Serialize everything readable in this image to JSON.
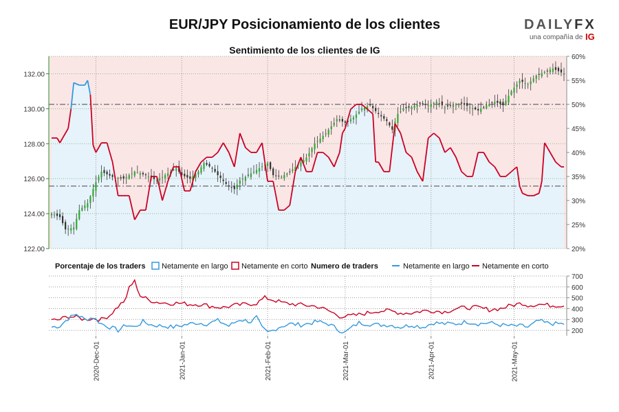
{
  "chart_data": {
    "type": "candlestick-sentiment",
    "title": "EUR/JPY Posicionamiento de los clientes",
    "subtitle": "Sentimiento de los clientes de IG",
    "brand": {
      "name_left": "DAILY",
      "name_right": "FX",
      "tagline": "una compañía de",
      "tagline_brand": "IG"
    },
    "price_axis": {
      "min": 122.0,
      "max": 133.0,
      "ticks": [
        "122.00",
        "124.00",
        "126.00",
        "128.00",
        "130.00",
        "132.00"
      ]
    },
    "pct_axis": {
      "min": 20,
      "max": 60,
      "ticks": [
        "20%",
        "25%",
        "30%",
        "35%",
        "40%",
        "45%",
        "50%",
        "55%",
        "60%"
      ]
    },
    "traders_axis": {
      "min": 150,
      "max": 700,
      "ticks": [
        "200",
        "300",
        "400",
        "500",
        "600",
        "700"
      ]
    },
    "x_ticks": [
      "2020-Dec-01",
      "2021-Jan-01",
      "2021-Feb-01",
      "2021-Mar-01",
      "2021-Apr-01",
      "2021-May-01"
    ],
    "x_tick_index": [
      16,
      47,
      78,
      106,
      137,
      167
    ],
    "num_points": 186,
    "reference_lines": {
      "pct_50": 50,
      "pct_33": 33
    },
    "legend": {
      "pct_title": "Porcentaje de los traders",
      "pct_long": "Netamente en largo",
      "pct_short": "Netamente en corto",
      "num_title": "Numero de traders",
      "num_long": "Netamente en largo",
      "num_short": "Netamente en corto"
    },
    "colors": {
      "long": "#3399dd",
      "short": "#cc0022",
      "long_bg": "#e6f3fb",
      "short_bg": "#fbe6e6",
      "up": "#33aa33",
      "down": "#333333",
      "axis_green": "#2a8a2a"
    },
    "price_anchors": [
      [
        0,
        124.0
      ],
      [
        3,
        123.8
      ],
      [
        5,
        123.1
      ],
      [
        8,
        123.2
      ],
      [
        10,
        124.2
      ],
      [
        13,
        124.6
      ],
      [
        16,
        125.8
      ],
      [
        18,
        126.4
      ],
      [
        22,
        126.1
      ],
      [
        26,
        126.0
      ],
      [
        30,
        126.4
      ],
      [
        34,
        126.2
      ],
      [
        38,
        125.9
      ],
      [
        42,
        126.3
      ],
      [
        45,
        126.6
      ],
      [
        47,
        126.2
      ],
      [
        50,
        126.0
      ],
      [
        53,
        126.4
      ],
      [
        55,
        126.9
      ],
      [
        58,
        126.6
      ],
      [
        60,
        126.2
      ],
      [
        63,
        125.7
      ],
      [
        66,
        125.4
      ],
      [
        68,
        125.9
      ],
      [
        70,
        126.1
      ],
      [
        72,
        126.3
      ],
      [
        75,
        126.6
      ],
      [
        78,
        126.9
      ],
      [
        80,
        126.2
      ],
      [
        83,
        126.1
      ],
      [
        86,
        126.4
      ],
      [
        89,
        126.8
      ],
      [
        92,
        127.2
      ],
      [
        95,
        128.0
      ],
      [
        97,
        128.3
      ],
      [
        99,
        128.6
      ],
      [
        101,
        129.0
      ],
      [
        103,
        129.4
      ],
      [
        106,
        129.2
      ],
      [
        109,
        129.5
      ],
      [
        112,
        130.0
      ],
      [
        115,
        130.2
      ],
      [
        118,
        129.7
      ],
      [
        121,
        129.3
      ],
      [
        123,
        128.8
      ],
      [
        125,
        129.7
      ],
      [
        127,
        130.0
      ],
      [
        130,
        130.1
      ],
      [
        133,
        130.3
      ],
      [
        136,
        130.2
      ],
      [
        139,
        130.4
      ],
      [
        142,
        130.1
      ],
      [
        145,
        130.2
      ],
      [
        148,
        130.3
      ],
      [
        151,
        130.1
      ],
      [
        154,
        129.9
      ],
      [
        157,
        130.2
      ],
      [
        160,
        130.4
      ],
      [
        163,
        130.2
      ],
      [
        166,
        131.0
      ],
      [
        169,
        131.6
      ],
      [
        172,
        131.4
      ],
      [
        175,
        131.9
      ],
      [
        178,
        132.1
      ],
      [
        181,
        132.3
      ],
      [
        185,
        132.0
      ]
    ],
    "pct_long_anchors": [
      [
        0,
        43
      ],
      [
        2,
        43
      ],
      [
        3,
        42
      ],
      [
        4,
        43
      ],
      [
        6,
        45
      ],
      [
        7,
        49
      ],
      [
        8,
        54.5
      ],
      [
        10,
        54
      ],
      [
        12,
        54
      ],
      [
        13,
        55
      ],
      [
        14,
        52
      ],
      [
        15,
        41.5
      ],
      [
        16,
        40
      ],
      [
        18,
        42
      ],
      [
        20,
        42
      ],
      [
        22,
        38
      ],
      [
        24,
        31
      ],
      [
        26,
        31
      ],
      [
        28,
        31
      ],
      [
        30,
        26
      ],
      [
        32,
        28
      ],
      [
        34,
        28
      ],
      [
        36,
        35
      ],
      [
        38,
        35
      ],
      [
        40,
        30
      ],
      [
        42,
        34
      ],
      [
        44,
        37
      ],
      [
        46,
        37
      ],
      [
        48,
        32
      ],
      [
        50,
        32
      ],
      [
        52,
        36
      ],
      [
        54,
        38
      ],
      [
        56,
        39
      ],
      [
        58,
        39
      ],
      [
        60,
        40
      ],
      [
        62,
        42
      ],
      [
        64,
        40
      ],
      [
        66,
        37
      ],
      [
        68,
        44
      ],
      [
        70,
        41
      ],
      [
        72,
        40
      ],
      [
        74,
        40
      ],
      [
        76,
        42
      ],
      [
        78,
        34
      ],
      [
        80,
        34
      ],
      [
        82,
        28
      ],
      [
        84,
        28
      ],
      [
        86,
        29
      ],
      [
        88,
        36
      ],
      [
        90,
        39
      ],
      [
        92,
        36
      ],
      [
        94,
        36
      ],
      [
        96,
        40
      ],
      [
        98,
        40
      ],
      [
        100,
        39
      ],
      [
        102,
        37
      ],
      [
        104,
        40
      ],
      [
        105,
        44
      ],
      [
        106,
        45
      ],
      [
        108,
        49
      ],
      [
        110,
        50
      ],
      [
        112,
        50
      ],
      [
        114,
        49
      ],
      [
        116,
        48
      ],
      [
        117,
        38
      ],
      [
        118,
        38
      ],
      [
        120,
        36
      ],
      [
        122,
        36
      ],
      [
        124,
        46
      ],
      [
        126,
        44
      ],
      [
        128,
        40
      ],
      [
        130,
        39
      ],
      [
        132,
        36
      ],
      [
        134,
        34
      ],
      [
        136,
        43
      ],
      [
        138,
        44
      ],
      [
        140,
        43
      ],
      [
        142,
        40
      ],
      [
        144,
        41
      ],
      [
        146,
        39
      ],
      [
        148,
        36
      ],
      [
        150,
        35
      ],
      [
        152,
        35
      ],
      [
        154,
        40
      ],
      [
        156,
        40
      ],
      [
        158,
        38
      ],
      [
        160,
        37
      ],
      [
        162,
        35
      ],
      [
        164,
        35
      ],
      [
        166,
        36
      ],
      [
        168,
        37
      ],
      [
        169,
        33
      ],
      [
        170,
        31.5
      ],
      [
        172,
        31
      ],
      [
        174,
        31
      ],
      [
        176,
        31.5
      ],
      [
        177,
        34
      ],
      [
        178,
        42
      ],
      [
        180,
        40
      ],
      [
        182,
        38
      ],
      [
        184,
        37
      ],
      [
        185,
        37
      ]
    ],
    "traders_long_anchors": [
      [
        0,
        230
      ],
      [
        3,
        240
      ],
      [
        6,
        310
      ],
      [
        9,
        350
      ],
      [
        12,
        300
      ],
      [
        15,
        320
      ],
      [
        18,
        260
      ],
      [
        21,
        230
      ],
      [
        24,
        200
      ],
      [
        27,
        250
      ],
      [
        30,
        230
      ],
      [
        33,
        280
      ],
      [
        36,
        250
      ],
      [
        40,
        240
      ],
      [
        44,
        230
      ],
      [
        48,
        250
      ],
      [
        52,
        270
      ],
      [
        56,
        260
      ],
      [
        60,
        290
      ],
      [
        64,
        240
      ],
      [
        68,
        300
      ],
      [
        72,
        280
      ],
      [
        74,
        320
      ],
      [
        76,
        220
      ],
      [
        78,
        180
      ],
      [
        80,
        200
      ],
      [
        82,
        230
      ],
      [
        86,
        260
      ],
      [
        90,
        250
      ],
      [
        94,
        270
      ],
      [
        96,
        280
      ],
      [
        100,
        260
      ],
      [
        104,
        200
      ],
      [
        106,
        180
      ],
      [
        108,
        220
      ],
      [
        111,
        270
      ],
      [
        114,
        260
      ],
      [
        118,
        250
      ],
      [
        122,
        250
      ],
      [
        126,
        230
      ],
      [
        130,
        250
      ],
      [
        134,
        230
      ],
      [
        138,
        270
      ],
      [
        142,
        260
      ],
      [
        146,
        260
      ],
      [
        150,
        280
      ],
      [
        154,
        260
      ],
      [
        158,
        270
      ],
      [
        162,
        250
      ],
      [
        166,
        240
      ],
      [
        170,
        240
      ],
      [
        172,
        230
      ],
      [
        176,
        290
      ],
      [
        178,
        270
      ],
      [
        182,
        260
      ],
      [
        185,
        260
      ]
    ],
    "traders_short_anchors": [
      [
        0,
        290
      ],
      [
        3,
        300
      ],
      [
        6,
        330
      ],
      [
        9,
        320
      ],
      [
        12,
        300
      ],
      [
        15,
        310
      ],
      [
        18,
        300
      ],
      [
        21,
        340
      ],
      [
        24,
        420
      ],
      [
        27,
        490
      ],
      [
        28,
        600
      ],
      [
        30,
        650
      ],
      [
        32,
        520
      ],
      [
        35,
        480
      ],
      [
        38,
        460
      ],
      [
        42,
        450
      ],
      [
        46,
        450
      ],
      [
        50,
        440
      ],
      [
        54,
        440
      ],
      [
        58,
        420
      ],
      [
        62,
        410
      ],
      [
        66,
        430
      ],
      [
        70,
        440
      ],
      [
        74,
        450
      ],
      [
        77,
        500
      ],
      [
        80,
        480
      ],
      [
        84,
        450
      ],
      [
        88,
        440
      ],
      [
        92,
        430
      ],
      [
        96,
        420
      ],
      [
        100,
        380
      ],
      [
        104,
        330
      ],
      [
        107,
        330
      ],
      [
        110,
        340
      ],
      [
        114,
        360
      ],
      [
        118,
        380
      ],
      [
        122,
        380
      ],
      [
        126,
        360
      ],
      [
        130,
        360
      ],
      [
        134,
        380
      ],
      [
        138,
        380
      ],
      [
        142,
        370
      ],
      [
        146,
        400
      ],
      [
        150,
        410
      ],
      [
        154,
        410
      ],
      [
        158,
        390
      ],
      [
        162,
        400
      ],
      [
        166,
        430
      ],
      [
        170,
        450
      ],
      [
        172,
        430
      ],
      [
        176,
        440
      ],
      [
        180,
        430
      ],
      [
        185,
        430
      ]
    ]
  }
}
